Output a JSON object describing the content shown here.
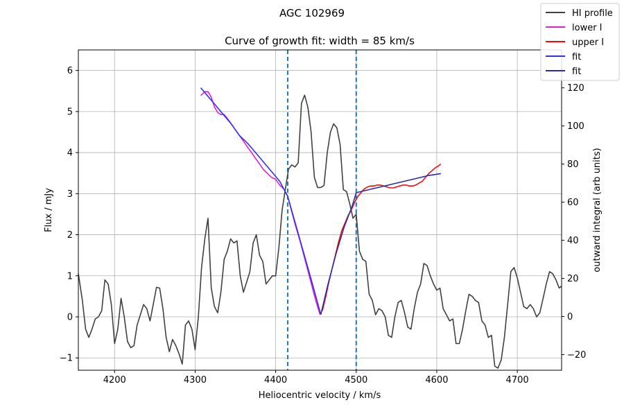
{
  "chart_data": {
    "type": "line",
    "suptitle": "AGC 102969",
    "title": "Curve of growth fit: width =   85 km/s",
    "xlabel": "Heliocentric velocity / km/s",
    "ylabel": "Flux / mJy",
    "ylabel_right": "outward integral (arb units)",
    "xlim": [
      4155,
      4755
    ],
    "ylim": [
      -1.3,
      6.5
    ],
    "ylim_right": [
      -28.2,
      139.9
    ],
    "x_ticks": [
      4200,
      4300,
      4400,
      4500,
      4600,
      4700
    ],
    "y_ticks": [
      -1,
      0,
      1,
      2,
      3,
      4,
      5,
      6
    ],
    "y_ticks_right": [
      -20,
      0,
      20,
      40,
      60,
      80,
      100,
      120
    ],
    "grid": true,
    "vlines": [
      {
        "x": 4415,
        "color": "#1f77b4",
        "style": "dashed"
      },
      {
        "x": 4500,
        "color": "#1f77b4",
        "style": "dashed"
      }
    ],
    "legend": {
      "placement": "top-right",
      "entries": [
        {
          "label": "HI profile",
          "color": "#404040"
        },
        {
          "label": "lower I",
          "color": "#e020d0"
        },
        {
          "label": "upper I",
          "color": "#e81010"
        },
        {
          "label": "fit",
          "color": "#3030f0"
        },
        {
          "label": "fit",
          "color": "#2a2aa8"
        }
      ]
    },
    "series": [
      {
        "name": "HI profile",
        "axis": "left",
        "color": "#404040",
        "x": [
          4155,
          4160,
          4164,
          4168,
          4172,
          4176,
          4180,
          4184,
          4188,
          4192,
          4196,
          4200,
          4204,
          4208,
          4212,
          4216,
          4220,
          4224,
          4228,
          4232,
          4236,
          4240,
          4244,
          4248,
          4252,
          4256,
          4260,
          4264,
          4268,
          4272,
          4276,
          4280,
          4284,
          4288,
          4292,
          4296,
          4300,
          4304,
          4308,
          4312,
          4316,
          4320,
          4324,
          4328,
          4332,
          4336,
          4340,
          4344,
          4348,
          4352,
          4356,
          4360,
          4364,
          4368,
          4372,
          4376,
          4380,
          4384,
          4388,
          4392,
          4396,
          4400,
          4404,
          4408,
          4412,
          4416,
          4420,
          4424,
          4428,
          4432,
          4436,
          4440,
          4444,
          4448,
          4452,
          4456,
          4460,
          4464,
          4468,
          4472,
          4476,
          4480,
          4484,
          4488,
          4492,
          4496,
          4500,
          4504,
          4508,
          4512,
          4516,
          4520,
          4524,
          4528,
          4532,
          4536,
          4540,
          4544,
          4548,
          4552,
          4556,
          4560,
          4564,
          4568,
          4572,
          4576,
          4580,
          4584,
          4588,
          4592,
          4596,
          4600,
          4604,
          4608,
          4612,
          4616,
          4620,
          4624,
          4628,
          4632,
          4636,
          4640,
          4644,
          4648,
          4652,
          4656,
          4660,
          4664,
          4668,
          4672,
          4676,
          4680,
          4684,
          4688,
          4692,
          4696,
          4700,
          4704,
          4708,
          4712,
          4716,
          4720,
          4724,
          4728,
          4732,
          4736,
          4740,
          4744,
          4748,
          4752,
          4755
        ],
        "y": [
          1.05,
          0.4,
          -0.3,
          -0.5,
          -0.3,
          -0.05,
          0.0,
          0.15,
          0.9,
          0.8,
          0.3,
          -0.65,
          -0.3,
          0.45,
          0.0,
          -0.6,
          -0.75,
          -0.7,
          -0.2,
          0.05,
          0.3,
          0.2,
          -0.1,
          0.3,
          0.72,
          0.7,
          0.2,
          -0.5,
          -0.85,
          -0.55,
          -0.7,
          -0.9,
          -1.15,
          -0.2,
          -0.1,
          -0.3,
          -0.8,
          0.0,
          1.2,
          1.9,
          2.4,
          0.7,
          0.25,
          0.1,
          0.6,
          1.4,
          1.6,
          1.9,
          1.8,
          1.85,
          1.0,
          0.6,
          0.85,
          1.1,
          1.8,
          2.0,
          1.5,
          1.35,
          0.8,
          0.9,
          1.0,
          1.0,
          1.7,
          2.6,
          3.1,
          3.6,
          3.7,
          3.65,
          3.75,
          5.2,
          5.4,
          5.1,
          4.5,
          3.4,
          3.15,
          3.15,
          3.2,
          4.0,
          4.5,
          4.7,
          4.6,
          4.2,
          3.1,
          3.05,
          2.75,
          2.4,
          2.5,
          1.6,
          1.4,
          1.35,
          0.55,
          0.4,
          0.05,
          0.2,
          0.15,
          0.0,
          -0.45,
          -0.5,
          0.0,
          0.35,
          0.4,
          0.1,
          -0.25,
          -0.3,
          0.2,
          0.6,
          0.8,
          1.3,
          1.25,
          1.0,
          0.8,
          0.65,
          0.7,
          0.2,
          0.05,
          -0.1,
          -0.05,
          -0.65,
          -0.65,
          -0.3,
          0.15,
          0.55,
          0.5,
          0.4,
          0.35,
          -0.1,
          -0.2,
          -0.5,
          -0.45,
          -1.2,
          -1.25,
          -1.05,
          -0.5,
          0.3,
          1.1,
          1.2,
          0.95,
          0.6,
          0.25,
          0.2,
          0.3,
          0.2,
          0.0,
          0.1,
          0.45,
          0.8,
          1.1,
          1.05,
          0.9,
          0.7,
          0.75
        ]
      },
      {
        "name": "lower I",
        "axis": "right",
        "color": "#e020d0",
        "x": [
          4307,
          4312,
          4316,
          4320,
          4324,
          4328,
          4332,
          4336,
          4340,
          4345,
          4350,
          4355,
          4360,
          4365,
          4370,
          4375,
          4380,
          4385,
          4390,
          4395,
          4400,
          4405,
          4410,
          4415,
          4420,
          4425,
          4430,
          4435,
          4440,
          4445,
          4450,
          4455
        ],
        "y": [
          116,
          118,
          118,
          115,
          110,
          107,
          106,
          106,
          104,
          101,
          98,
          95,
          92,
          89,
          86,
          83,
          80,
          77,
          75,
          73,
          72,
          69,
          67,
          63,
          55,
          47,
          40,
          32,
          24,
          16,
          8,
          1
        ]
      },
      {
        "name": "upper I",
        "axis": "right",
        "color": "#e81010",
        "x": [
          4458,
          4462,
          4466,
          4470,
          4474,
          4478,
          4482,
          4486,
          4490,
          4494,
          4498,
          4502,
          4506,
          4510,
          4514,
          4518,
          4522,
          4526,
          4530,
          4534,
          4538,
          4542,
          4546,
          4550,
          4554,
          4558,
          4562,
          4566,
          4570,
          4574,
          4578,
          4582,
          4586,
          4590,
          4594,
          4598,
          4602,
          4605
        ],
        "y": [
          3,
          10,
          18,
          25,
          32,
          39,
          45,
          49,
          53,
          56,
          60,
          63,
          65,
          67,
          68,
          68.5,
          68.5,
          69,
          69,
          68.5,
          68,
          67.5,
          67.5,
          68,
          68.5,
          69,
          69,
          68.5,
          68.5,
          69,
          70,
          71,
          73,
          75,
          76.5,
          78,
          79,
          80
        ]
      },
      {
        "name": "fit",
        "axis": "right",
        "color": "#3030f0",
        "x": [
          4307,
          4315,
          4325,
          4335,
          4345,
          4355,
          4365,
          4375,
          4385,
          4395,
          4405,
          4415,
          4425,
          4435,
          4445,
          4456
        ],
        "y": [
          120,
          116,
          111,
          106,
          101,
          95,
          91,
          86,
          81,
          76,
          71,
          63,
          48,
          33,
          18,
          1
        ]
      },
      {
        "name": "fit",
        "axis": "right",
        "color": "#2a2aa8",
        "x": [
          4456,
          4465,
          4475,
          4485,
          4495,
          4500,
          4510,
          4530,
          4550,
          4570,
          4590,
          4605
        ],
        "y": [
          1,
          17,
          33,
          47,
          58,
          65,
          66,
          68,
          70,
          72,
          74,
          75
        ]
      }
    ]
  }
}
